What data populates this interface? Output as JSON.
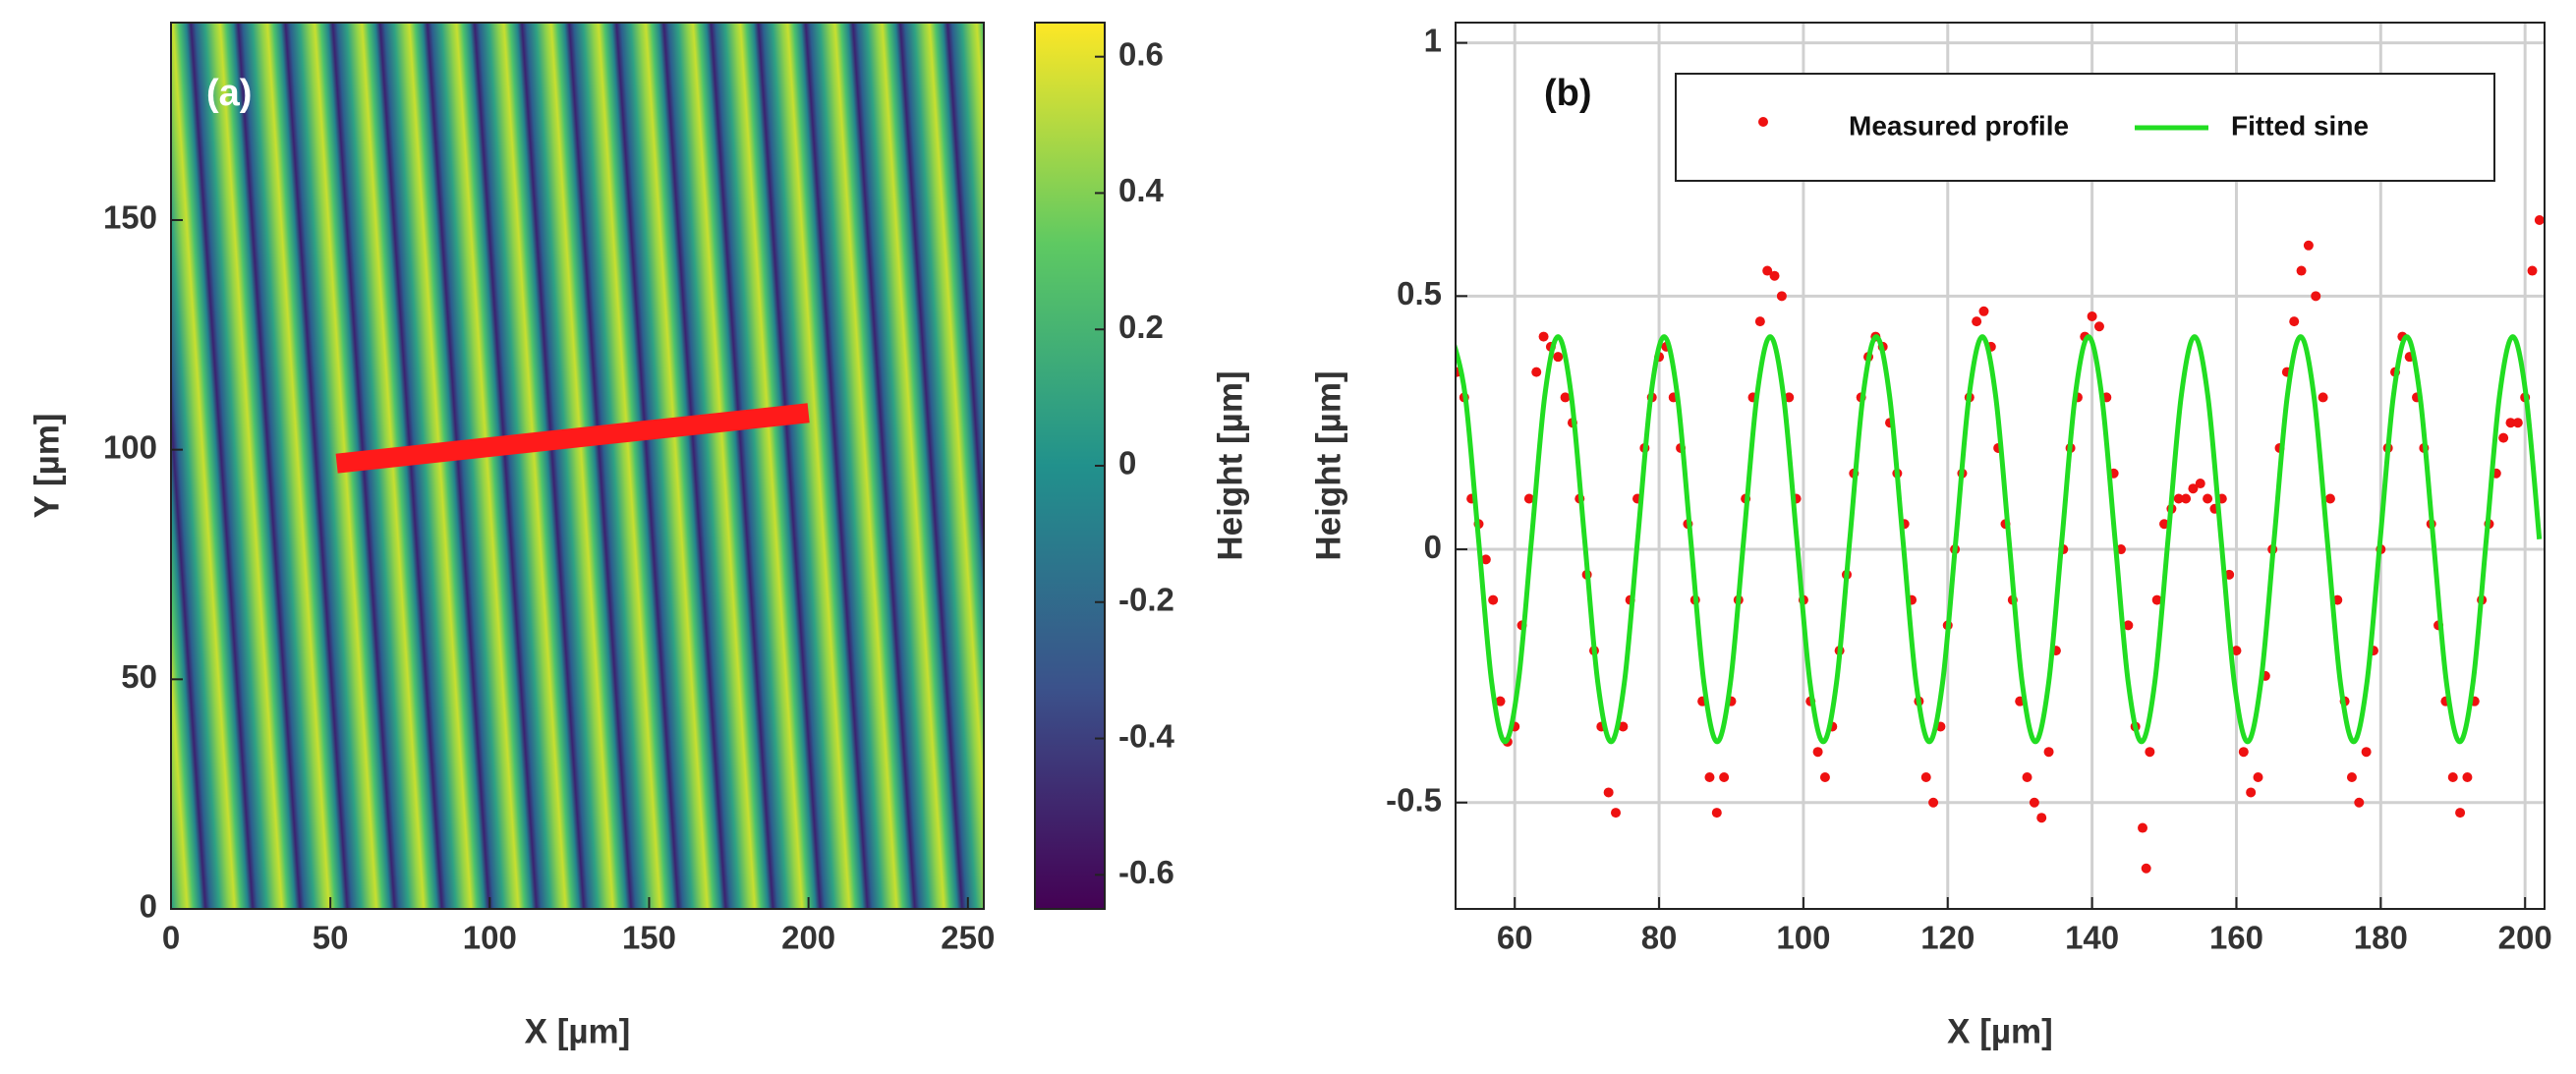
{
  "chart_data": [
    {
      "type": "heatmap",
      "annotation": "(a)",
      "xlabel": "X [µm]",
      "ylabel": "Y [µm]",
      "xlim": [
        0,
        255
      ],
      "ylim": [
        0,
        193
      ],
      "xticks": [
        0,
        50,
        100,
        150,
        200,
        250
      ],
      "yticks": [
        0,
        50,
        100,
        150
      ],
      "colorbar": {
        "label": "Height [µm]",
        "lim": [
          -0.65,
          0.65
        ],
        "ticks": [
          -0.6,
          -0.4,
          -0.2,
          0,
          0.2,
          0.4,
          0.6
        ]
      },
      "profile_line": {
        "x": [
          52,
          200
        ],
        "y": [
          97,
          108
        ],
        "color": "#ff1a1a"
      }
    },
    {
      "type": "line",
      "annotation": "(b)",
      "xlabel": "X [µm]",
      "ylabel": "Height [µm]",
      "xlim": [
        51.8,
        202.7
      ],
      "ylim": [
        -0.71,
        1.04
      ],
      "xticks": [
        60,
        80,
        100,
        120,
        140,
        160,
        180,
        200
      ],
      "yticks": [
        -0.5,
        0,
        0.5,
        1
      ],
      "grid": true,
      "legend": "top-right",
      "series": [
        {
          "name": "Measured profile",
          "mode": "markers",
          "color": "#ee1111",
          "x": [
            52,
            53,
            54,
            55,
            56,
            57,
            58,
            59,
            60,
            61,
            62,
            63,
            64,
            65,
            66,
            67,
            68,
            69,
            70,
            71,
            72,
            73,
            74,
            75,
            76,
            77,
            78,
            79,
            80,
            81,
            82,
            83,
            84,
            85,
            86,
            87,
            88,
            89,
            90,
            91,
            92,
            93,
            94,
            95,
            96,
            97,
            98,
            99,
            100,
            101,
            102,
            103,
            104,
            105,
            106,
            107,
            108,
            109,
            110,
            111,
            112,
            113,
            114,
            115,
            116,
            117,
            118,
            119,
            120,
            121,
            122,
            123,
            124,
            125,
            126,
            127,
            128,
            129,
            130,
            131,
            132,
            133,
            134,
            135,
            136,
            137,
            138,
            139,
            140,
            141,
            142,
            143,
            144,
            145,
            146,
            147,
            147.5,
            148,
            149,
            150,
            151,
            152,
            153,
            154,
            155,
            156,
            157,
            158,
            159,
            160,
            161,
            162,
            163,
            164,
            165,
            166,
            167,
            168,
            169,
            170,
            171,
            172,
            173,
            174,
            175,
            176,
            177,
            178,
            179,
            180,
            181,
            182,
            183,
            184,
            185,
            186,
            187,
            188,
            189,
            190,
            191,
            192,
            193,
            194,
            195,
            196,
            197,
            198,
            199,
            200,
            201,
            202
          ],
          "values": [
            0.35,
            0.3,
            0.1,
            0.05,
            -0.02,
            -0.1,
            -0.3,
            -0.38,
            -0.35,
            -0.15,
            0.1,
            0.35,
            0.42,
            0.4,
            0.38,
            0.3,
            0.25,
            0.1,
            -0.05,
            -0.2,
            -0.35,
            -0.48,
            -0.52,
            -0.35,
            -0.1,
            0.1,
            0.2,
            0.3,
            0.38,
            0.4,
            0.3,
            0.2,
            0.05,
            -0.1,
            -0.3,
            -0.45,
            -0.52,
            -0.45,
            -0.3,
            -0.1,
            0.1,
            0.3,
            0.45,
            0.55,
            0.54,
            0.5,
            0.3,
            0.1,
            -0.1,
            -0.3,
            -0.4,
            -0.45,
            -0.35,
            -0.2,
            -0.05,
            0.15,
            0.3,
            0.38,
            0.42,
            0.4,
            0.25,
            0.15,
            0.05,
            -0.1,
            -0.3,
            -0.45,
            -0.5,
            -0.35,
            -0.15,
            0.0,
            0.15,
            0.3,
            0.45,
            0.47,
            0.4,
            0.2,
            0.05,
            -0.1,
            -0.3,
            -0.45,
            -0.5,
            -0.53,
            -0.4,
            -0.2,
            0.0,
            0.2,
            0.3,
            0.42,
            0.46,
            0.44,
            0.3,
            0.15,
            0.0,
            -0.15,
            -0.35,
            -0.55,
            -0.63,
            -0.4,
            -0.1,
            0.05,
            0.08,
            0.1,
            0.1,
            0.12,
            0.13,
            0.1,
            0.08,
            0.1,
            -0.05,
            -0.2,
            -0.4,
            -0.48,
            -0.45,
            -0.25,
            0.0,
            0.2,
            0.35,
            0.45,
            0.55,
            0.6,
            0.5,
            0.3,
            0.1,
            -0.1,
            -0.3,
            -0.45,
            -0.5,
            -0.4,
            -0.2,
            0.0,
            0.2,
            0.35,
            0.42,
            0.38,
            0.3,
            0.2,
            0.05,
            -0.15,
            -0.3,
            -0.45,
            -0.52,
            -0.45,
            -0.3,
            -0.1,
            0.05,
            0.15,
            0.22,
            0.25,
            0.25,
            0.3,
            0.55,
            0.65
          ]
        },
        {
          "name": "Fitted sine",
          "mode": "line",
          "color": "#22dd22",
          "x": [
            51.3,
            53.14,
            54.98,
            56.81,
            58.65,
            60.49,
            62.33,
            64.16,
            66.0,
            67.84,
            69.68,
            71.51,
            73.35,
            75.19,
            77.03,
            78.86,
            80.7,
            82.54,
            84.38,
            86.21,
            88.05,
            89.89,
            91.73,
            93.56,
            95.4,
            97.24,
            99.08,
            100.91,
            102.75,
            104.59,
            106.43,
            108.26,
            110.1,
            111.94,
            113.78,
            115.61,
            117.45,
            119.29,
            121.13,
            122.96,
            124.8,
            126.64,
            128.48,
            130.31,
            132.15,
            133.99,
            135.83,
            137.66,
            139.5,
            141.34,
            143.18,
            145.01,
            146.85,
            148.69,
            150.53,
            152.36,
            154.2,
            156.04,
            157.88,
            159.71,
            161.55,
            163.39,
            165.23,
            167.06,
            168.9,
            170.74,
            172.58,
            174.41,
            176.25,
            178.09,
            179.93,
            181.76,
            183.6,
            185.44,
            187.28,
            189.11,
            190.95,
            192.79,
            194.63,
            196.46,
            198.3,
            200.14,
            201.98
          ],
          "values": [
            0.42,
            0.303,
            0.02,
            -0.263,
            -0.38,
            -0.263,
            0.02,
            0.303,
            0.42,
            0.303,
            0.02,
            -0.263,
            -0.38,
            -0.263,
            0.02,
            0.303,
            0.42,
            0.303,
            0.02,
            -0.263,
            -0.38,
            -0.263,
            0.02,
            0.303,
            0.42,
            0.303,
            0.02,
            -0.263,
            -0.38,
            -0.263,
            0.02,
            0.303,
            0.42,
            0.303,
            0.02,
            -0.263,
            -0.38,
            -0.263,
            0.02,
            0.303,
            0.42,
            0.303,
            0.02,
            -0.263,
            -0.38,
            -0.263,
            0.02,
            0.303,
            0.42,
            0.303,
            0.02,
            -0.263,
            -0.38,
            -0.263,
            0.02,
            0.303,
            0.42,
            0.303,
            0.02,
            -0.263,
            -0.38,
            -0.263,
            0.02,
            0.303,
            0.42,
            0.303,
            0.02,
            -0.263,
            -0.38,
            -0.263,
            0.02,
            0.303,
            0.42,
            0.303,
            0.02,
            -0.263,
            -0.38,
            -0.263,
            0.02,
            0.303,
            0.42,
            0.303,
            0.02
          ]
        }
      ]
    }
  ]
}
